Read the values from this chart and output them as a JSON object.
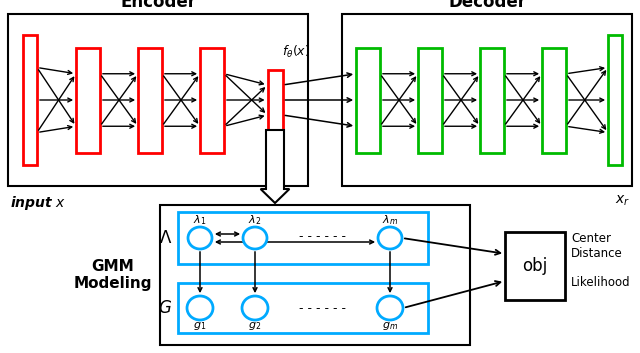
{
  "bg_color": "#ffffff",
  "encoder_color": "#ff0000",
  "decoder_color": "#00bb00",
  "encoder_label": "Encoder",
  "decoder_label": "Decoder",
  "gmm_label": "GMM\nModeling",
  "input_label": "input $x$",
  "output_label": "$x_r$",
  "f_label": "$f_\\theta(x)$",
  "lambda_label": "$\\Lambda$",
  "g_label": "$G$",
  "obj_label": "obj",
  "center_dist_label": "Center\nDistance",
  "likelihood_label": "Likelihood",
  "lambda_nodes": [
    "$\\lambda_1$",
    "$\\lambda_2$",
    "$\\lambda_m$"
  ],
  "g_nodes": [
    "$g_1$",
    "$g_2$",
    "$g_m$"
  ]
}
